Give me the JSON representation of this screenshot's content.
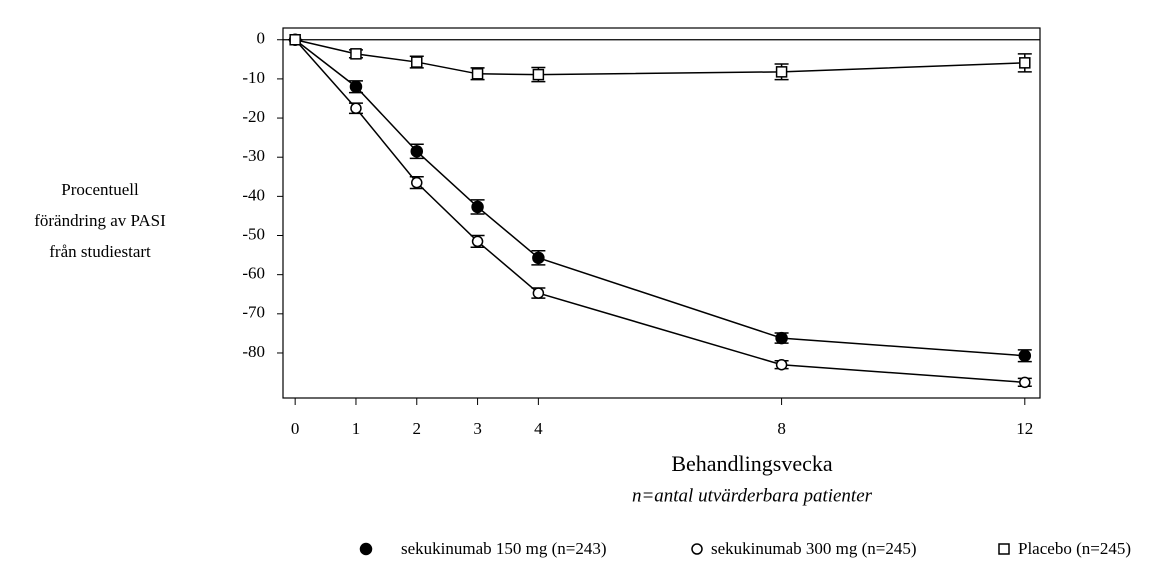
{
  "chart_data": {
    "type": "line",
    "ylabel": [
      "Procentuell",
      "förändring av PASI",
      "från studiestart"
    ],
    "xlabel": "Behandlingsvecka",
    "xnote": "n=antal utvärderbara patienter",
    "x": [
      0,
      1,
      2,
      3,
      4,
      8,
      12
    ],
    "xlim": [
      -0.2,
      12.25
    ],
    "xticks": [
      0,
      1,
      2,
      3,
      4,
      8,
      12
    ],
    "ylim": [
      -91.5,
      3
    ],
    "yticks": [
      0,
      -10,
      -20,
      -30,
      -40,
      -50,
      -60,
      -70,
      -80
    ],
    "reference_line": 0,
    "series": [
      {
        "name": "sekukinumab 150 mg (n=243)",
        "color": "#000000",
        "marker": "filled-circle",
        "values": [
          0,
          -12,
          -28.5,
          -42.7,
          -55.7,
          -76.2,
          -80.7
        ],
        "errors": [
          0,
          1.5,
          1.8,
          1.8,
          1.8,
          1.3,
          1.5
        ]
      },
      {
        "name": "sekukinumab 300 mg (n=245)",
        "color": "#000000",
        "marker": "open-circle",
        "values": [
          0,
          -17.5,
          -36.5,
          -51.5,
          -64.7,
          -83,
          -87.5
        ],
        "errors": [
          0,
          1.3,
          1.5,
          1.5,
          1.3,
          1,
          1
        ]
      },
      {
        "name": "Placebo (n=245)",
        "color": "#000000",
        "marker": "open-square",
        "values": [
          0,
          -3.6,
          -5.7,
          -8.7,
          -8.9,
          -8.2,
          -5.9
        ],
        "errors": [
          0,
          1,
          1.5,
          1.5,
          1.8,
          2,
          2.3
        ]
      }
    ]
  }
}
